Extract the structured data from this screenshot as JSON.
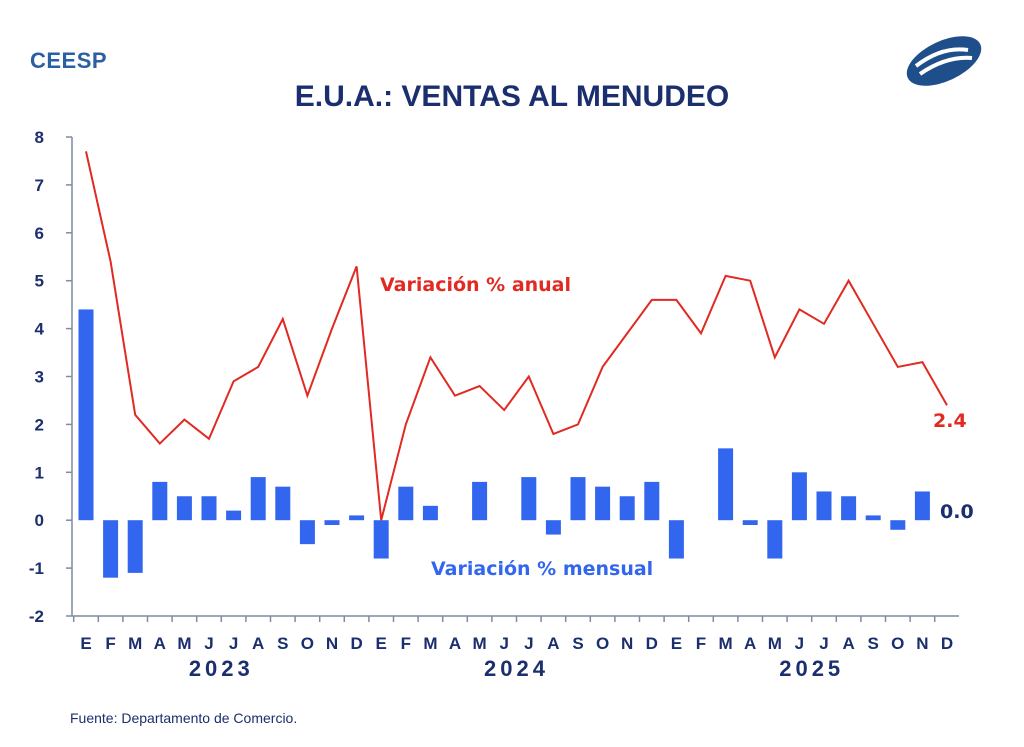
{
  "header": {
    "brand": "CEESP",
    "title": "E.U.A.: VENTAS AL MENUDEO"
  },
  "footer": {
    "source": "Fuente: Departamento de Comercio."
  },
  "colors": {
    "annual": "#e02a22",
    "monthly": "#3366ee",
    "axis": "#1b2f6e"
  },
  "chart_data": {
    "type": "bar+line",
    "title": "E.U.A.: VENTAS AL MENUDEO",
    "ylim": [
      -2,
      8
    ],
    "yticks": [
      "-2",
      "-1",
      "0",
      "1",
      "2",
      "3",
      "4",
      "5",
      "6",
      "7",
      "8"
    ],
    "months": [
      "E",
      "F",
      "M",
      "A",
      "M",
      "J",
      "J",
      "A",
      "S",
      "O",
      "N",
      "D",
      "E",
      "F",
      "M",
      "A",
      "M",
      "J",
      "J",
      "A",
      "S",
      "O",
      "N",
      "D",
      "E",
      "F",
      "M",
      "A",
      "M",
      "J",
      "J",
      "A",
      "S",
      "O",
      "N",
      "D"
    ],
    "years": [
      "2023",
      "2024",
      "2025"
    ],
    "series": [
      {
        "name": "Variación % anual",
        "type": "line",
        "values": [
          7.7,
          5.4,
          2.2,
          1.6,
          2.1,
          1.7,
          2.9,
          3.2,
          4.2,
          2.6,
          4.0,
          5.3,
          0.0,
          2.0,
          3.4,
          2.6,
          2.8,
          2.3,
          3.0,
          1.8,
          2.0,
          3.2,
          3.9,
          4.6,
          4.6,
          3.9,
          5.1,
          5.0,
          3.4,
          4.4,
          4.1,
          5.0,
          4.1,
          3.2,
          3.3,
          2.4
        ],
        "last_label": "2.4"
      },
      {
        "name": "Variación % mensual",
        "type": "bar",
        "values": [
          4.4,
          -1.2,
          -1.1,
          0.8,
          0.5,
          0.5,
          0.2,
          0.9,
          0.7,
          -0.5,
          -0.1,
          0.1,
          -0.8,
          0.7,
          0.3,
          0.0,
          0.8,
          0.0,
          0.9,
          -0.3,
          0.9,
          0.7,
          0.5,
          0.8,
          -0.8,
          0.0,
          1.5,
          -0.1,
          -0.8,
          1.0,
          0.6,
          0.5,
          0.1,
          -0.2,
          0.6,
          0.0
        ],
        "last_label": "0.0"
      }
    ]
  }
}
